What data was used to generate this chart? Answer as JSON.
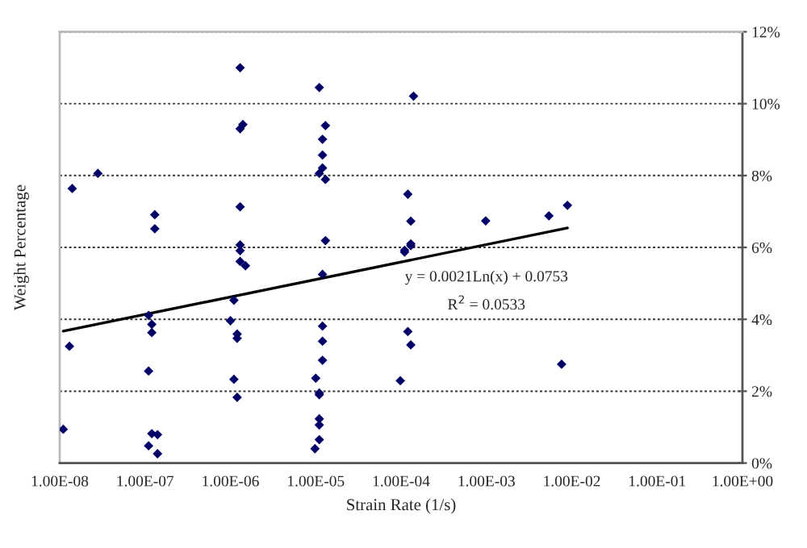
{
  "chart_data": {
    "type": "scatter",
    "xlabel": "Strain Rate (1/s)",
    "ylabel": "Weight Percentage",
    "log": "x",
    "grid": "y",
    "xlim": [
      1e-08,
      1
    ],
    "xticks": [
      {
        "value": 1e-08,
        "label": "1.00E-08"
      },
      {
        "value": 1e-07,
        "label": "1.00E-07"
      },
      {
        "value": 1e-06,
        "label": "1.00E-06"
      },
      {
        "value": 1e-05,
        "label": "1.00E-05"
      },
      {
        "value": 0.0001,
        "label": "1.00E-04"
      },
      {
        "value": 0.001,
        "label": "1.00E-03"
      },
      {
        "value": 0.01,
        "label": "1.00E-02"
      },
      {
        "value": 0.1,
        "label": "1.00E-01"
      },
      {
        "value": 1,
        "label": "1.00E+00"
      }
    ],
    "ylim": [
      0,
      12
    ],
    "yticks": [
      {
        "value": 0,
        "label": "0%"
      },
      {
        "value": 2,
        "label": "2%"
      },
      {
        "value": 4,
        "label": "4%"
      },
      {
        "value": 6,
        "label": "6%"
      },
      {
        "value": 8,
        "label": "8%"
      },
      {
        "value": 10,
        "label": "10%"
      },
      {
        "value": 12,
        "label": "12%"
      }
    ],
    "annotations": [
      "y = 0.0021Ln(x) + 0.0753",
      "R$^{2}$ = 0.0533"
    ],
    "series": [
      {
        "marker": "diamond",
        "color": "#000066",
        "x": [
          1.4e-08,
          2.8e-08,
          1.3e-07,
          1.3e-07,
          1.3e-06,
          1.4e-06,
          1.3e-06,
          1.3e-06,
          1.3e-06,
          1.3e-06,
          1.3e-06,
          1.5e-06,
          1.1e-05,
          1.3e-05,
          1.2e-05,
          1.2e-05,
          1.2e-05,
          1.1e-05,
          1.3e-05,
          1.3e-05,
          1.2e-05,
          1.1e-07,
          1.2e-07,
          1.2e-07,
          1.3e-08,
          1.1e-07,
          1.1e-08,
          1.2e-07,
          1.4e-07,
          1.1e-07,
          1.4e-07,
          1.1e-06,
          1e-06,
          1.2e-06,
          1.2e-06,
          1.1e-06,
          1.2e-06,
          1.2e-05,
          1.2e-05,
          1.2e-05,
          1e-05,
          1.1e-05,
          1.1e-05,
          1.1e-05,
          1.1e-05,
          1.1e-05,
          9.8e-06,
          0.00014,
          0.00012,
          0.00013,
          0.00013,
          0.00013,
          0.00011,
          0.00011,
          0.00098,
          0.0054,
          0.0089,
          0.00012,
          0.00013,
          9.8e-05,
          0.0076
        ],
        "values": [
          7.64,
          8.06,
          6.91,
          6.52,
          11.0,
          9.42,
          9.3,
          7.13,
          6.07,
          5.91,
          5.61,
          5.49,
          10.45,
          9.39,
          9.01,
          8.57,
          8.21,
          8.06,
          7.89,
          6.19,
          5.25,
          4.11,
          3.86,
          3.63,
          3.25,
          2.56,
          0.94,
          0.82,
          0.79,
          0.48,
          0.26,
          4.53,
          3.96,
          3.59,
          3.47,
          2.33,
          1.83,
          3.81,
          3.39,
          2.86,
          2.36,
          1.9,
          1.95,
          1.23,
          1.06,
          0.65,
          0.4,
          10.21,
          7.48,
          6.73,
          6.1,
          6.05,
          5.87,
          5.92,
          6.74,
          6.88,
          7.17,
          3.66,
          3.29,
          2.29,
          2.75
        ]
      },
      {
        "type": "line",
        "color": "#000000",
        "x": [
          1.1e-08,
          0.0089
        ],
        "values": [
          3.67,
          6.54
        ]
      }
    ]
  }
}
